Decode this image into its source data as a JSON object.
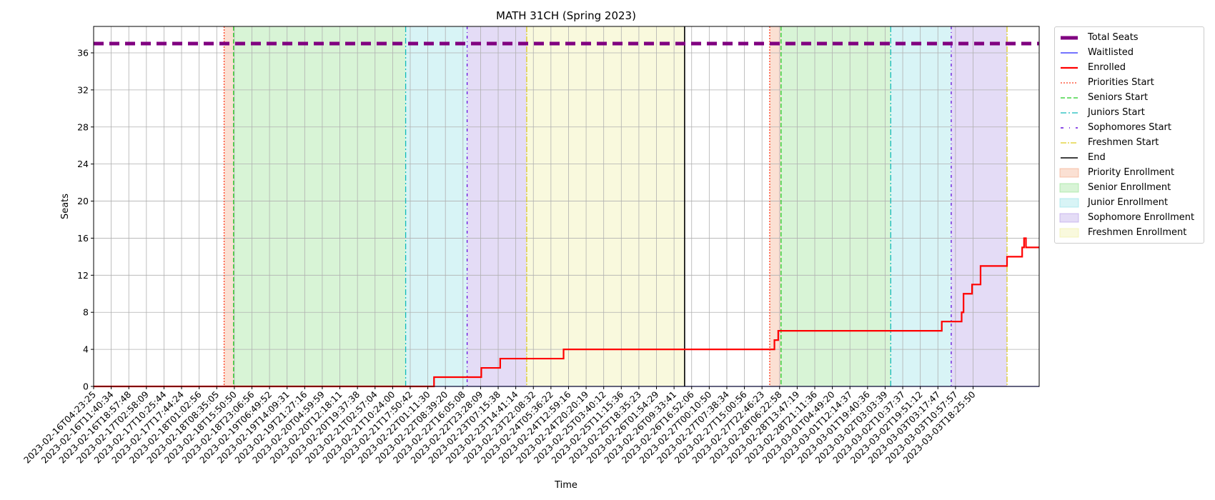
{
  "chart_data": {
    "type": "line",
    "title": "MATH 31CH (Spring 2023)",
    "xlabel": "Time",
    "ylabel": "Seats",
    "ylim": [
      0,
      38.85
    ],
    "xlim": [
      0,
      100
    ],
    "grid": true,
    "yticks": [
      0,
      4,
      8,
      12,
      16,
      20,
      24,
      28,
      32,
      36
    ],
    "xtick_labels": [
      "2023-02-16T04:23:25",
      "2023-02-16T11:40:34",
      "2023-02-16T18:57:48",
      "2023-02-17T02:58:09",
      "2023-02-17T10:25:44",
      "2023-02-17T17:44:24",
      "2023-02-18T01:02:56",
      "2023-02-18T08:35:05",
      "2023-02-18T15:50:50",
      "2023-02-18T23:06:56",
      "2023-02-19T06:49:52",
      "2023-02-19T14:09:31",
      "2023-02-19T21:27:16",
      "2023-02-20T04:59:59",
      "2023-02-20T12:18:11",
      "2023-02-20T19:37:38",
      "2023-02-21T02:57:04",
      "2023-02-21T10:24:00",
      "2023-02-21T17:50:42",
      "2023-02-22T01:11:30",
      "2023-02-22T08:39:20",
      "2023-02-22T16:05:08",
      "2023-02-22T23:28:09",
      "2023-02-23T07:15:38",
      "2023-02-23T14:41:14",
      "2023-02-23T22:08:32",
      "2023-02-24T05:36:22",
      "2023-02-24T12:59:16",
      "2023-02-24T20:20:19",
      "2023-02-25T03:40:12",
      "2023-02-25T11:15:36",
      "2023-02-25T18:35:23",
      "2023-02-26T01:54:29",
      "2023-02-26T09:33:41",
      "2023-02-26T16:52:06",
      "2023-02-27T00:10:50",
      "2023-02-27T07:38:34",
      "2023-02-27T15:00:56",
      "2023-02-27T22:46:23",
      "2023-02-28T06:22:58",
      "2023-02-28T13:47:19",
      "2023-02-28T21:11:36",
      "2023-03-01T04:49:20",
      "2023-03-01T12:14:37",
      "2023-03-01T19:40:36",
      "2023-03-02T03:03:39",
      "2023-03-02T10:37:37",
      "2023-03-02T19:51:12",
      "2023-03-03T03:17:47",
      "2023-03-03T10:57:57",
      "2023-03-03T18:25:50"
    ],
    "regions": [
      {
        "name": "Priority Enrollment",
        "start": 13.8,
        "end": 14.8,
        "color": "#f4a582"
      },
      {
        "name": "Senior Enrollment",
        "start": 14.8,
        "end": 33.0,
        "color": "#90e08a"
      },
      {
        "name": "Junior Enrollment",
        "start": 33.0,
        "end": 39.5,
        "color": "#8ee0e6"
      },
      {
        "name": "Sophomore Enrollment",
        "start": 39.5,
        "end": 45.8,
        "color": "#b39ae6"
      },
      {
        "name": "Freshmen Enrollment",
        "start": 45.8,
        "end": 62.5,
        "color": "#eeee9e"
      },
      {
        "name": "Priority Enrollment",
        "start": 71.5,
        "end": 72.7,
        "color": "#f4a582"
      },
      {
        "name": "Senior Enrollment",
        "start": 72.7,
        "end": 84.3,
        "color": "#90e08a"
      },
      {
        "name": "Junior Enrollment",
        "start": 84.3,
        "end": 90.7,
        "color": "#8ee0e6"
      },
      {
        "name": "Sophomore Enrollment",
        "start": 90.7,
        "end": 96.6,
        "color": "#b39ae6"
      }
    ],
    "vlines": [
      {
        "name": "Priorities Start",
        "x": 13.8,
        "color": "#ff3b1f",
        "dash": "2,2"
      },
      {
        "name": "Seniors Start",
        "x": 14.8,
        "color": "#22cc22",
        "dash": "6,3"
      },
      {
        "name": "Juniors Start",
        "x": 33.0,
        "color": "#11bbbb",
        "dash": "8,3,2,3"
      },
      {
        "name": "Sophomores Start",
        "x": 39.5,
        "color": "#6611dd",
        "dash": "4,4,1,4"
      },
      {
        "name": "Freshmen Start",
        "x": 45.8,
        "color": "#ddcc22",
        "dash": "8,2,2,2"
      },
      {
        "name": "End",
        "x": 62.5,
        "color": "#000000",
        "dash": ""
      },
      {
        "name": "Priorities Start",
        "x": 71.5,
        "color": "#ff3b1f",
        "dash": "2,2"
      },
      {
        "name": "Seniors Start",
        "x": 72.7,
        "color": "#22cc22",
        "dash": "6,3"
      },
      {
        "name": "Juniors Start",
        "x": 84.3,
        "color": "#11bbbb",
        "dash": "8,3,2,3"
      },
      {
        "name": "Sophomores Start",
        "x": 90.7,
        "color": "#6611dd",
        "dash": "4,4,1,4"
      },
      {
        "name": "Freshmen Start",
        "x": 96.6,
        "color": "#ddcc22",
        "dash": "8,2,2,2"
      }
    ],
    "series": [
      {
        "name": "Total Seats",
        "color": "#800080",
        "width": 5,
        "dash": "14,8",
        "step": false,
        "points": [
          [
            0,
            37
          ],
          [
            100,
            37
          ]
        ]
      },
      {
        "name": "Waitlisted",
        "color": "#2222ff",
        "width": 1.2,
        "dash": "",
        "step": true,
        "points": [
          [
            0,
            0
          ],
          [
            100,
            0
          ]
        ]
      },
      {
        "name": "Enrolled",
        "color": "#ff0000",
        "width": 2.2,
        "dash": "",
        "step": true,
        "points": [
          [
            0,
            0
          ],
          [
            36.0,
            0
          ],
          [
            36.0,
            1
          ],
          [
            41.0,
            1
          ],
          [
            41.0,
            2
          ],
          [
            43.0,
            2
          ],
          [
            43.0,
            3
          ],
          [
            49.7,
            3
          ],
          [
            49.7,
            4
          ],
          [
            72.0,
            4
          ],
          [
            72.0,
            5
          ],
          [
            72.4,
            5
          ],
          [
            72.4,
            6
          ],
          [
            89.7,
            6
          ],
          [
            89.7,
            7
          ],
          [
            91.8,
            7
          ],
          [
            91.8,
            8
          ],
          [
            92.0,
            8
          ],
          [
            92.0,
            10
          ],
          [
            92.9,
            10
          ],
          [
            92.9,
            11
          ],
          [
            93.8,
            11
          ],
          [
            93.8,
            13
          ],
          [
            96.6,
            13
          ],
          [
            96.6,
            14
          ],
          [
            98.2,
            14
          ],
          [
            98.2,
            15
          ],
          [
            98.4,
            15
          ],
          [
            98.4,
            16
          ],
          [
            98.6,
            16
          ],
          [
            98.6,
            15
          ],
          [
            100,
            15
          ]
        ]
      }
    ],
    "legend_position": "outside upper right"
  },
  "legend": {
    "total_seats": "Total Seats",
    "waitlisted": "Waitlisted",
    "enrolled": "Enrolled",
    "priorities_start": "Priorities Start",
    "seniors_start": "Seniors Start",
    "juniors_start": "Juniors Start",
    "sophomores_start": "Sophomores Start",
    "freshmen_start": "Freshmen Start",
    "end": "End",
    "priority_enrollment": "Priority Enrollment",
    "senior_enrollment": "Senior Enrollment",
    "junior_enrollment": "Junior Enrollment",
    "sophomore_enrollment": "Sophomore Enrollment",
    "freshmen_enrollment": "Freshmen Enrollment"
  }
}
